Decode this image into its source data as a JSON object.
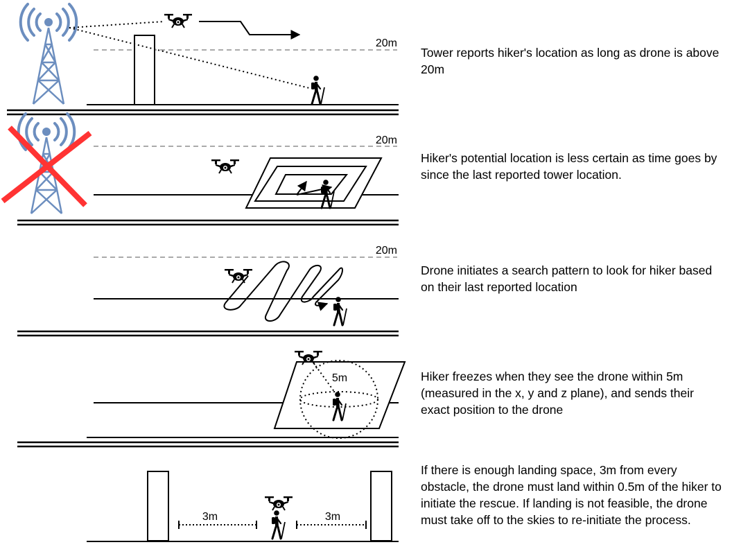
{
  "panels": [
    {
      "altitude_label": "20m",
      "caption": "Tower reports hiker's location as long as drone is above 20m"
    },
    {
      "altitude_label": "20m",
      "caption": "Hiker's potential location is less certain as time goes by since the last reported tower location."
    },
    {
      "altitude_label": "20m",
      "caption": "Drone initiates a search pattern to look for hiker based on their last reported location"
    },
    {
      "radius_label": "5m",
      "caption": "Hiker freezes when they see the drone within 5m (measured in the x, y and z plane), and sends their exact position to the drone"
    },
    {
      "left_clearance_label": "3m",
      "right_clearance_label": "3m",
      "caption": "If there is enough landing space, 3m from every obstacle, the drone must land within 0.5m of the hiker to initiate the rescue. If landing is not feasible, the drone must take off to the skies to re-initiate the process."
    }
  ],
  "colors": {
    "tower": "#6c8ebf",
    "cross": "#ff3333",
    "altitude_line": "#aaaaaa",
    "ink": "#000000"
  },
  "icons": [
    "cell-tower-icon",
    "drone-icon",
    "hiker-icon"
  ]
}
